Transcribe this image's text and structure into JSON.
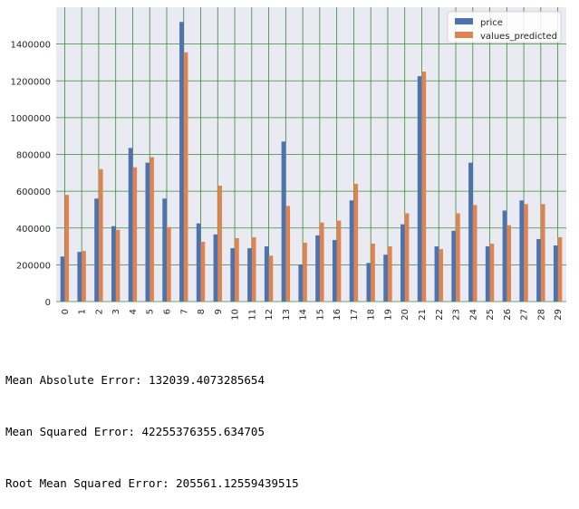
{
  "chart_data": {
    "type": "bar",
    "categories": [
      "0",
      "1",
      "2",
      "3",
      "4",
      "5",
      "6",
      "7",
      "8",
      "9",
      "10",
      "11",
      "12",
      "13",
      "14",
      "15",
      "16",
      "17",
      "18",
      "19",
      "20",
      "21",
      "22",
      "23",
      "24",
      "25",
      "26",
      "27",
      "28",
      "29"
    ],
    "series": [
      {
        "name": "price",
        "color": "#4c72b0",
        "values": [
          245000,
          270000,
          560000,
          410000,
          835000,
          755000,
          560000,
          1520000,
          425000,
          365000,
          290000,
          290000,
          300000,
          870000,
          200000,
          360000,
          335000,
          550000,
          210000,
          255000,
          420000,
          1225000,
          300000,
          385000,
          755000,
          300000,
          495000,
          550000,
          340000,
          305000
        ]
      },
      {
        "name": "values_predicted",
        "color": "#dd8452",
        "values": [
          580000,
          275000,
          720000,
          390000,
          730000,
          785000,
          405000,
          1355000,
          325000,
          630000,
          345000,
          350000,
          250000,
          520000,
          320000,
          430000,
          440000,
          640000,
          315000,
          300000,
          480000,
          1250000,
          285000,
          480000,
          525000,
          315000,
          415000,
          530000,
          530000,
          350000
        ]
      }
    ],
    "yticks": [
      "0",
      "200000",
      "400000",
      "600000",
      "800000",
      "1000000",
      "1200000",
      "1400000"
    ],
    "ylim": [
      0,
      1600000
    ],
    "grid": true,
    "legend": "top-right",
    "colors": {
      "plot_background": "#eaeaf2",
      "grid": "#3a8a3a"
    }
  },
  "metrics": {
    "mae": "Mean Absolute Error: 132039.4073285654",
    "mse": "Mean Squared Error: 42255376355.634705",
    "rmse": "Root Mean Squared Error: 205561.12559439515"
  }
}
